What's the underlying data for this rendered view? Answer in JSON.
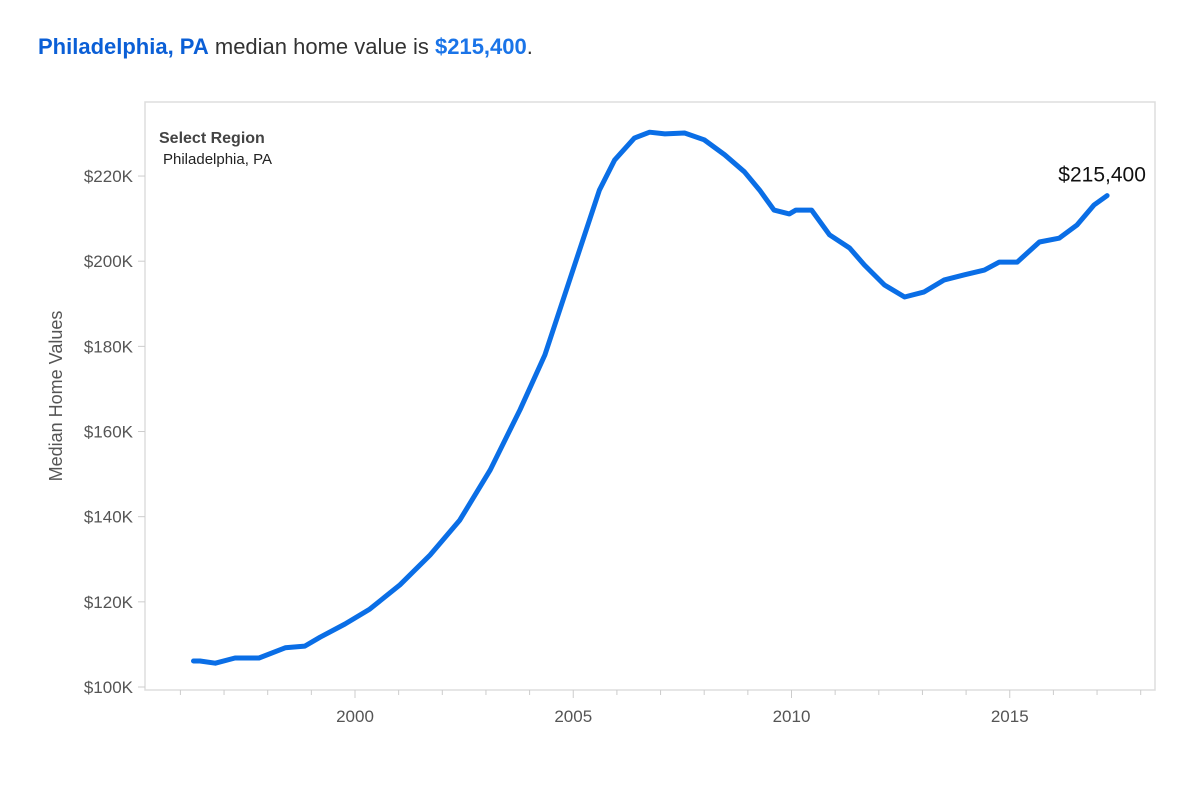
{
  "headline": {
    "region": "Philadelphia, PA",
    "middle": " median home value is ",
    "value": "$215,400",
    "end": "."
  },
  "legend": {
    "title": "Select Region",
    "value": "Philadelphia, PA"
  },
  "colors": {
    "line": "#0a6ee6",
    "headline_region": "#0b5fd6",
    "headline_value": "#1a74e8"
  },
  "chart_data": {
    "type": "line",
    "title": "Philadelphia, PA median home value is $215,400.",
    "xlabel": "",
    "ylabel": "Median Home Values",
    "xlim": [
      1995.6,
      2018.3
    ],
    "ylim": [
      100000,
      232000
    ],
    "x_ticks": [
      2000,
      2005,
      2010,
      2015
    ],
    "x_tick_labels": [
      "2000",
      "2005",
      "2010",
      "2015"
    ],
    "y_ticks": [
      100000,
      120000,
      140000,
      160000,
      180000,
      200000,
      220000
    ],
    "y_tick_labels": [
      "$100K",
      "$120K",
      "$140K",
      "$160K",
      "$180K",
      "$200K",
      "$220K"
    ],
    "end_label": "$215,400",
    "grid": false,
    "series": [
      {
        "name": "Philadelphia, PA",
        "x": [
          1996.3,
          1996.45,
          1996.8,
          1997.25,
          1997.8,
          1998.4,
          1998.85,
          1999.2,
          1999.77,
          2000.34,
          2001.03,
          2001.72,
          2002.4,
          2003.1,
          2003.78,
          2004.35,
          2005.03,
          2005.6,
          2005.95,
          2006.4,
          2006.75,
          2007.1,
          2007.55,
          2008.0,
          2008.47,
          2008.92,
          2009.27,
          2009.6,
          2009.95,
          2010.1,
          2010.46,
          2010.87,
          2011.33,
          2011.67,
          2012.13,
          2012.59,
          2013.04,
          2013.5,
          2013.96,
          2014.42,
          2014.76,
          2015.17,
          2015.68,
          2016.13,
          2016.54,
          2016.93,
          2017.23
        ],
        "y": [
          106100,
          106100,
          105600,
          106800,
          106800,
          109200,
          109600,
          111700,
          114800,
          118300,
          124000,
          131000,
          139200,
          151000,
          165100,
          178000,
          199100,
          216700,
          223800,
          228900,
          230300,
          229900,
          230100,
          228500,
          225000,
          221000,
          216700,
          212000,
          211100,
          212000,
          212000,
          206200,
          203100,
          199100,
          194400,
          191600,
          192800,
          195600,
          196800,
          197900,
          199800,
          199800,
          204500,
          205400,
          208500,
          213200,
          215400
        ]
      }
    ]
  }
}
